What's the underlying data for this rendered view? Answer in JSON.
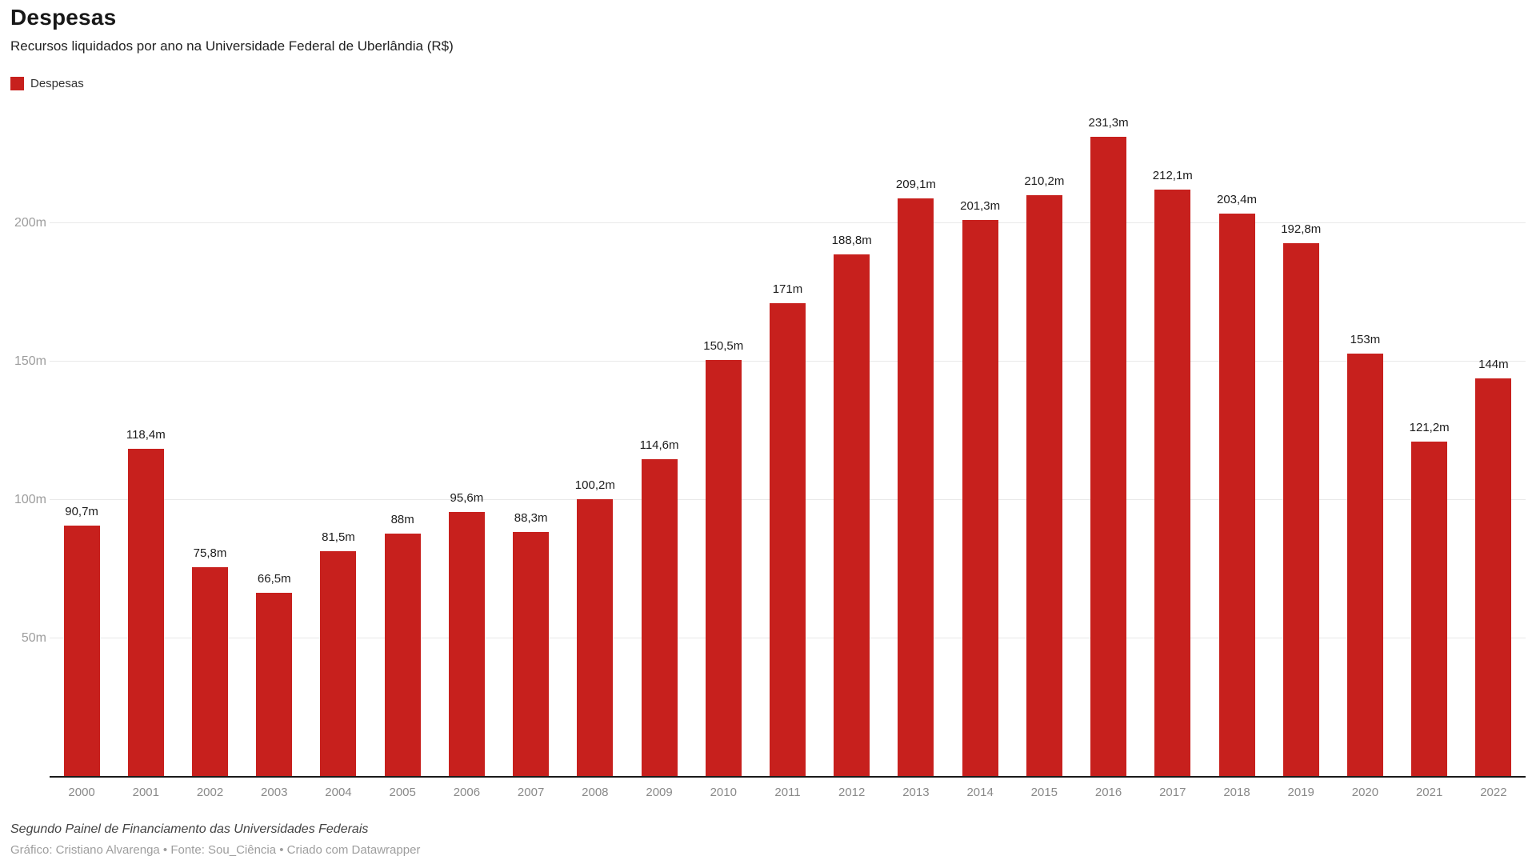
{
  "header": {
    "title": "Despesas",
    "subtitle": "Recursos liquidados por ano na Universidade Federal de Uberlândia (R$)"
  },
  "colors": {
    "bar": "#c7201d",
    "gridline": "#e9e9e9",
    "baseline": "#1a1a1a"
  },
  "chart_data": {
    "type": "bar",
    "title": "Despesas",
    "subtitle": "Recursos liquidados por ano na Universidade Federal de Uberlândia (R$)",
    "unit": "R$ (milhões)",
    "legend": [
      {
        "label": "Despesas",
        "color": "#c7201d"
      }
    ],
    "legend_position": "top-left",
    "grid": true,
    "categories": [
      "2000",
      "2001",
      "2002",
      "2003",
      "2004",
      "2005",
      "2006",
      "2007",
      "2008",
      "2009",
      "2010",
      "2011",
      "2012",
      "2013",
      "2014",
      "2015",
      "2016",
      "2017",
      "2018",
      "2019",
      "2020",
      "2021",
      "2022"
    ],
    "values": [
      90.7,
      118.4,
      75.8,
      66.5,
      81.5,
      88,
      95.6,
      88.3,
      100.2,
      114.6,
      150.5,
      171,
      188.8,
      209.1,
      201.3,
      210.2,
      231.3,
      212.1,
      203.4,
      192.8,
      153,
      121.2,
      144
    ],
    "value_labels": [
      "90,7m",
      "118,4m",
      "75,8m",
      "66,5m",
      "81,5m",
      "88m",
      "95,6m",
      "88,3m",
      "100,2m",
      "114,6m",
      "150,5m",
      "171m",
      "188,8m",
      "209,1m",
      "201,3m",
      "210,2m",
      "231,3m",
      "212,1m",
      "203,4m",
      "192,8m",
      "153m",
      "121,2m",
      "144m"
    ],
    "yticks": [
      {
        "value": 50,
        "label": "50m"
      },
      {
        "value": 100,
        "label": "100m"
      },
      {
        "value": 150,
        "label": "150m"
      },
      {
        "value": 200,
        "label": "200m"
      }
    ],
    "ylim": [
      0,
      243
    ],
    "xlabel": "",
    "ylabel": ""
  },
  "footer": {
    "note": "Segundo Painel de Financiamento das Universidades Federais",
    "credits": "Gráfico: Cristiano Alvarenga • Fonte: Sou_Ciência • Criado com Datawrapper"
  }
}
